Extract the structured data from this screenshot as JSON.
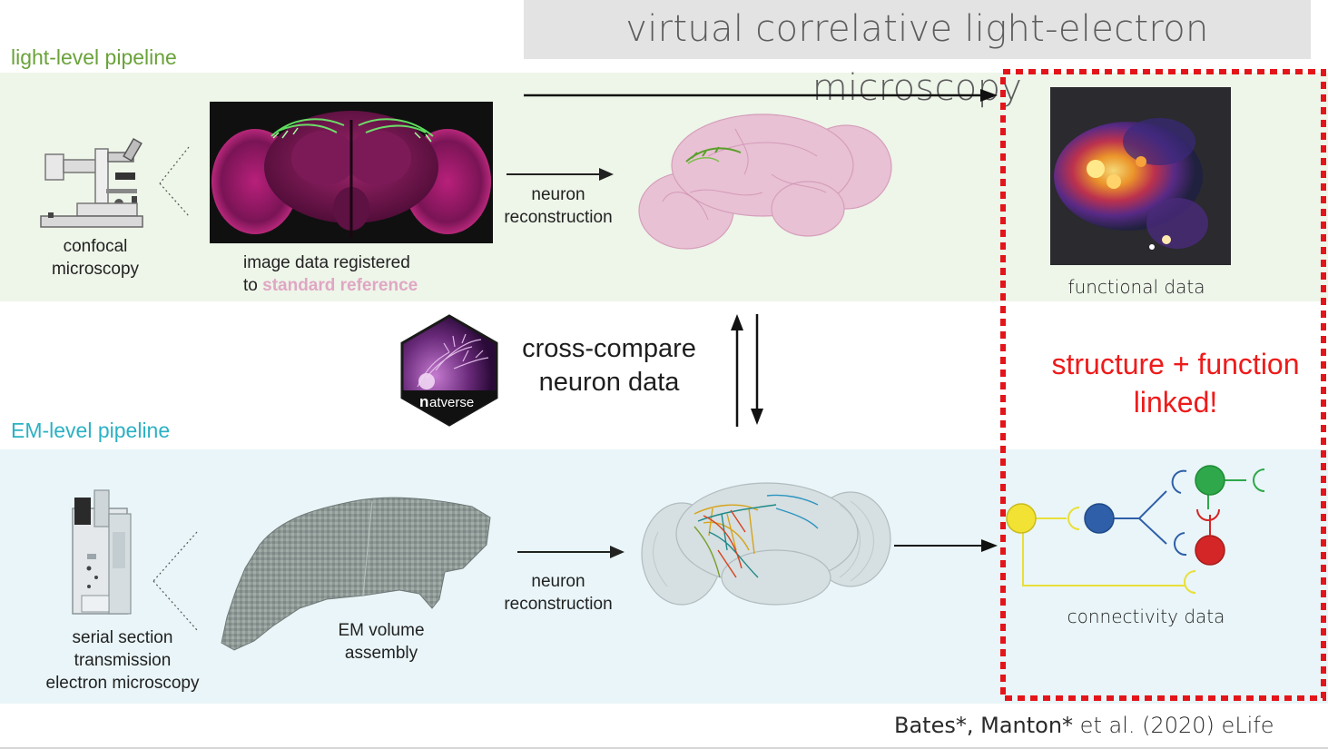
{
  "title": "virtual correlative light-electron microscopy",
  "light_pipeline": {
    "label": "light-level pipeline",
    "microscope_caption": [
      "confocal",
      "microscopy"
    ],
    "image_caption_line1": "image data registered",
    "image_caption_prefix": "to ",
    "image_caption_highlight": "standard reference",
    "reconstruction_caption": [
      "neuron",
      "reconstruction"
    ],
    "functional_caption": "functional data"
  },
  "center": {
    "cross_compare": [
      "cross-compare",
      "neuron data"
    ],
    "logo_text_n": "n",
    "logo_text_rest": "atverse"
  },
  "em_pipeline": {
    "label": "EM-level pipeline",
    "microscope_caption": [
      "serial section",
      "transmission",
      "electron microscopy"
    ],
    "volume_caption": [
      "EM volume",
      "assembly"
    ],
    "reconstruction_caption": [
      "neuron",
      "reconstruction"
    ],
    "connectivity_caption": "connectivity data"
  },
  "linked": [
    "structure + function",
    "linked!"
  ],
  "citation": {
    "authors": "Bates*, Manton*",
    "rest": " et al. (2020) eLife"
  },
  "colors": {
    "light_band": "#eef5e9",
    "em_band": "#e9f5f8",
    "green_label": "#6aa23a",
    "cyan_label": "#2bb1c5",
    "red_accent": "#ee1b1b",
    "pink_highlight": "#e0a7c4",
    "node_yellow": "#f2e233",
    "node_blue": "#2f5fa8",
    "node_green": "#2ea84a",
    "node_red": "#d42626"
  },
  "icons": [
    "confocal-microscope-icon",
    "em-microscope-icon",
    "natverse-logo",
    "brain-image",
    "heatmap-image",
    "em-volume-image"
  ]
}
